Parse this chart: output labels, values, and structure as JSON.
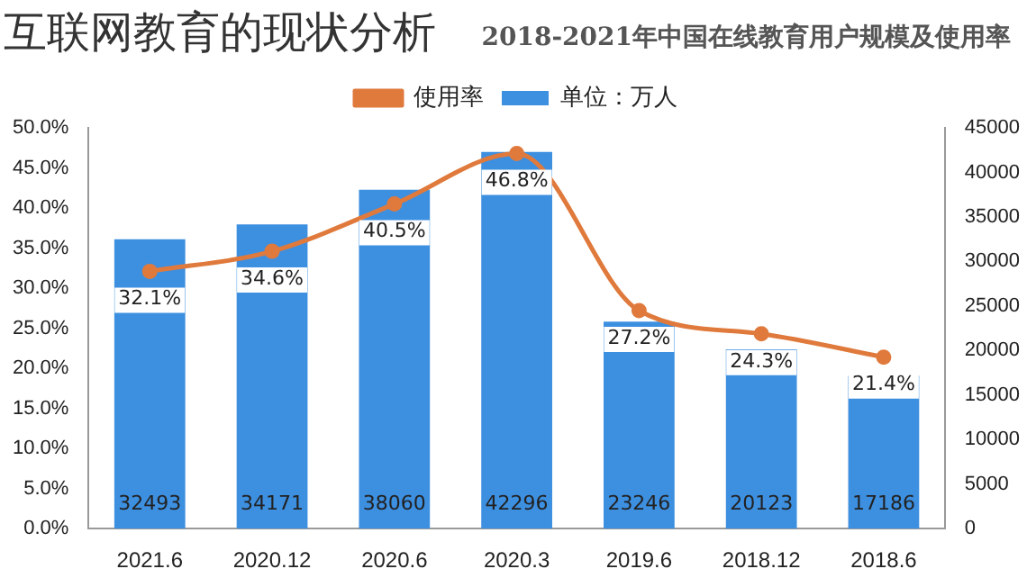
{
  "chart_data": {
    "type": "bar",
    "title": "互联网教育的现状分析",
    "subtitle": "2018-2021年中国在线教育用户规模及使用率",
    "categories": [
      "2021.6",
      "2020.12",
      "2020.6",
      "2020.3",
      "2019.6",
      "2018.12",
      "2018.6"
    ],
    "series": [
      {
        "name": "单位：万人",
        "axis": "y2",
        "color": "#3d8fe0",
        "values": [
          32493,
          34171,
          38060,
          42296,
          23246,
          20123,
          17186
        ],
        "value_labels": [
          "32493",
          "34171",
          "38060",
          "42296",
          "23246",
          "20123",
          "17186"
        ]
      },
      {
        "name": "使用率",
        "type": "line",
        "axis": "y",
        "color": "#e07a3c",
        "marker": "circle",
        "values": [
          32.1,
          34.6,
          40.5,
          46.8,
          27.2,
          24.3,
          21.4
        ],
        "value_labels": [
          "32.1%",
          "34.6%",
          "40.5%",
          "46.8%",
          "27.2%",
          "24.3%",
          "21.4%"
        ]
      }
    ],
    "ylim": [
      0,
      50
    ],
    "yticks": [
      {
        "value": 0,
        "label": "0.0%"
      },
      {
        "value": 5,
        "label": "5.0%"
      },
      {
        "value": 10,
        "label": "10.0%"
      },
      {
        "value": 15,
        "label": "15.0%"
      },
      {
        "value": 20,
        "label": "20.0%"
      },
      {
        "value": 25,
        "label": "25.0%"
      },
      {
        "value": 30,
        "label": "30.0%"
      },
      {
        "value": 35,
        "label": "35.0%"
      },
      {
        "value": 40,
        "label": "40.0%"
      },
      {
        "value": 45,
        "label": "45.0%"
      },
      {
        "value": 50,
        "label": "50.0%"
      }
    ],
    "y2lim": [
      0,
      45000
    ],
    "y2ticks": [
      0,
      5000,
      10000,
      15000,
      20000,
      25000,
      30000,
      35000,
      40000,
      45000
    ],
    "grid": false,
    "legend": "top"
  }
}
